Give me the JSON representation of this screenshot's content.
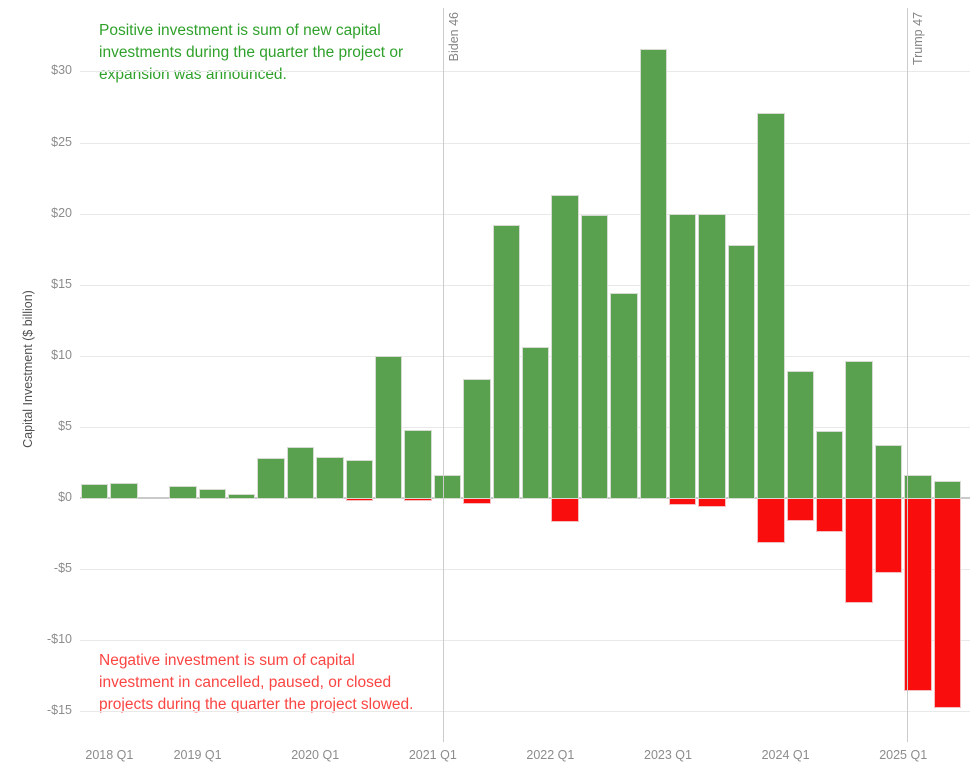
{
  "chart_data": {
    "type": "bar",
    "title": "",
    "ylabel": "Capital Investment ($ billion)",
    "ylim": [
      -17.2,
      34.5
    ],
    "grid": true,
    "legend_position": "none",
    "yticks": [
      {
        "value": 30,
        "label": "$30"
      },
      {
        "value": 25,
        "label": "$25"
      },
      {
        "value": 20,
        "label": "$20"
      },
      {
        "value": 15,
        "label": "$15"
      },
      {
        "value": 10,
        "label": "$10"
      },
      {
        "value": 5,
        "label": "$5"
      },
      {
        "value": 0,
        "label": "$0"
      },
      {
        "value": -5,
        "label": "-$5"
      },
      {
        "value": -10,
        "label": "-$10"
      },
      {
        "value": -15,
        "label": "-$15"
      }
    ],
    "categories": [
      "2017 Q4",
      "2018 Q1",
      "2018 Q2",
      "2018 Q4",
      "2019 Q1",
      "2019 Q2",
      "2019 Q3",
      "2019 Q4",
      "2020 Q1",
      "2020 Q2",
      "2020 Q3",
      "2020 Q4",
      "2021 Q1",
      "2021 Q2",
      "2021 Q3",
      "2021 Q4",
      "2022 Q1",
      "2022 Q2",
      "2022 Q3",
      "2022 Q4",
      "2023 Q1",
      "2023 Q2",
      "2023 Q3",
      "2023 Q4",
      "2024 Q1",
      "2024 Q2",
      "2024 Q3",
      "2024 Q4",
      "2025 Q1",
      "2025 Q2"
    ],
    "series": [
      {
        "name": "Positive investment",
        "color": "#59a14f",
        "border_color": "#d6dcd2",
        "values": [
          1.0,
          1.05,
          0,
          0.85,
          0.65,
          0.3,
          2.8,
          3.6,
          2.9,
          2.7,
          10.0,
          4.75,
          1.6,
          8.4,
          19.2,
          10.6,
          21.3,
          19.9,
          14.4,
          31.6,
          19.95,
          20.0,
          17.8,
          27.1,
          8.9,
          4.7,
          9.6,
          3.7,
          1.6,
          1.2
        ]
      },
      {
        "name": "Negative investment",
        "color": "#f90d0d",
        "border_color": "#f5bebe",
        "values": [
          0,
          0,
          0,
          0,
          0,
          0,
          0,
          0,
          0,
          -0.2,
          0,
          -0.2,
          0,
          -0.4,
          0,
          0,
          -1.7,
          0,
          0,
          0,
          -0.5,
          -0.6,
          0,
          -3.15,
          -1.65,
          -2.4,
          -7.35,
          -5.3,
          -13.6,
          -14.8
        ]
      }
    ],
    "x_tick_labels": [
      {
        "label": "2018 Q1",
        "slot": 1
      },
      {
        "label": "2019 Q1",
        "slot": 4
      },
      {
        "label": "2020 Q1",
        "slot": 8
      },
      {
        "label": "2021 Q1",
        "slot": 12
      },
      {
        "label": "2022 Q1",
        "slot": 16
      },
      {
        "label": "2023 Q1",
        "slot": 20
      },
      {
        "label": "2024 Q1",
        "slot": 24
      },
      {
        "label": "2025 Q1",
        "slot": 28
      }
    ],
    "reference_lines": [
      {
        "label": "Biden 46",
        "x_slot": 12.33,
        "color": "#cccccc"
      },
      {
        "label": "Trump 47",
        "x_slot": 28.12,
        "color": "#cccccc"
      }
    ],
    "annotations": {
      "positive": {
        "text": "Positive investment is sum of new capital investments during the quarter the project or expansion was announced.",
        "color": "#2fa12b"
      },
      "negative": {
        "text": "Negative investment is sum of capital investment in cancelled, paused, or closed projects during the quarter the project slowed.",
        "color": "#fa4542"
      }
    },
    "axis_text_color": "#8c8c8c",
    "grid_color": "#e9e9e9",
    "zero_line_color": "#c9c9c9"
  }
}
